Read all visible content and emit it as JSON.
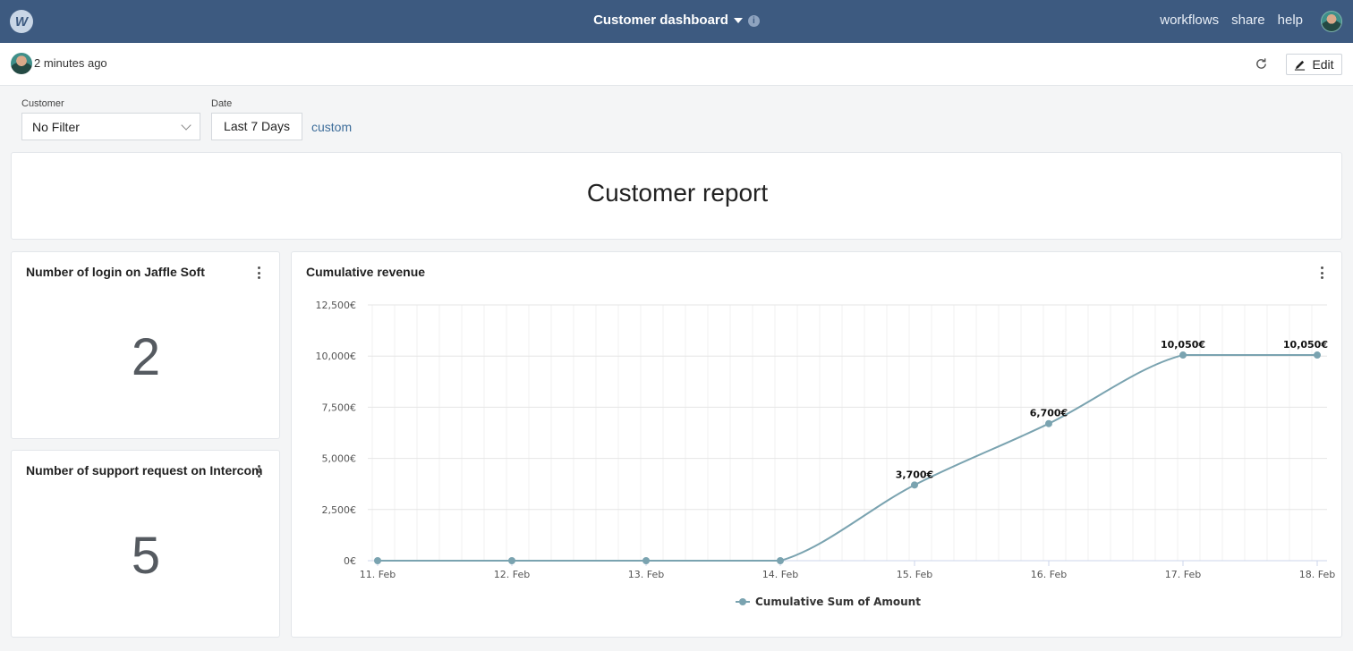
{
  "header": {
    "logo_letter": "W",
    "title": "Customer dashboard",
    "nav": [
      "workflows",
      "share",
      "help"
    ]
  },
  "subbar": {
    "updated": "2 minutes ago",
    "edit_label": "Edit"
  },
  "filters": {
    "customer_label": "Customer",
    "customer_value": "No Filter",
    "date_label": "Date",
    "date_value": "Last 7 Days",
    "custom_link": "custom"
  },
  "report": {
    "title": "Customer report"
  },
  "kpis": [
    {
      "title": "Number of login on Jaffle Soft",
      "value": "2"
    },
    {
      "title": "Number of support request on Intercom",
      "value": "5"
    }
  ],
  "chart": {
    "title": "Cumulative revenue"
  },
  "chart_data": {
    "type": "line",
    "categories": [
      "11. Feb",
      "12. Feb",
      "13. Feb",
      "14. Feb",
      "15. Feb",
      "16. Feb",
      "17. Feb",
      "18. Feb"
    ],
    "series": [
      {
        "name": "Cumulative Sum of Amount",
        "values": [
          0,
          0,
          0,
          0,
          3700,
          6700,
          10050,
          10050
        ],
        "color": "#7aa3b0"
      }
    ],
    "data_labels": [
      "",
      "",
      "",
      "",
      "3,700€",
      "6,700€",
      "10,050€",
      "10,050€"
    ],
    "y_ticks": [
      "0€",
      "2,500€",
      "5,000€",
      "7,500€",
      "10,000€",
      "12,500€"
    ],
    "ylim": [
      0,
      12500
    ],
    "legend": "bottom",
    "grid": true
  },
  "colors": {
    "header": "#3d5a80",
    "accent": "#7aa3b0",
    "link": "#3d6d9a"
  }
}
